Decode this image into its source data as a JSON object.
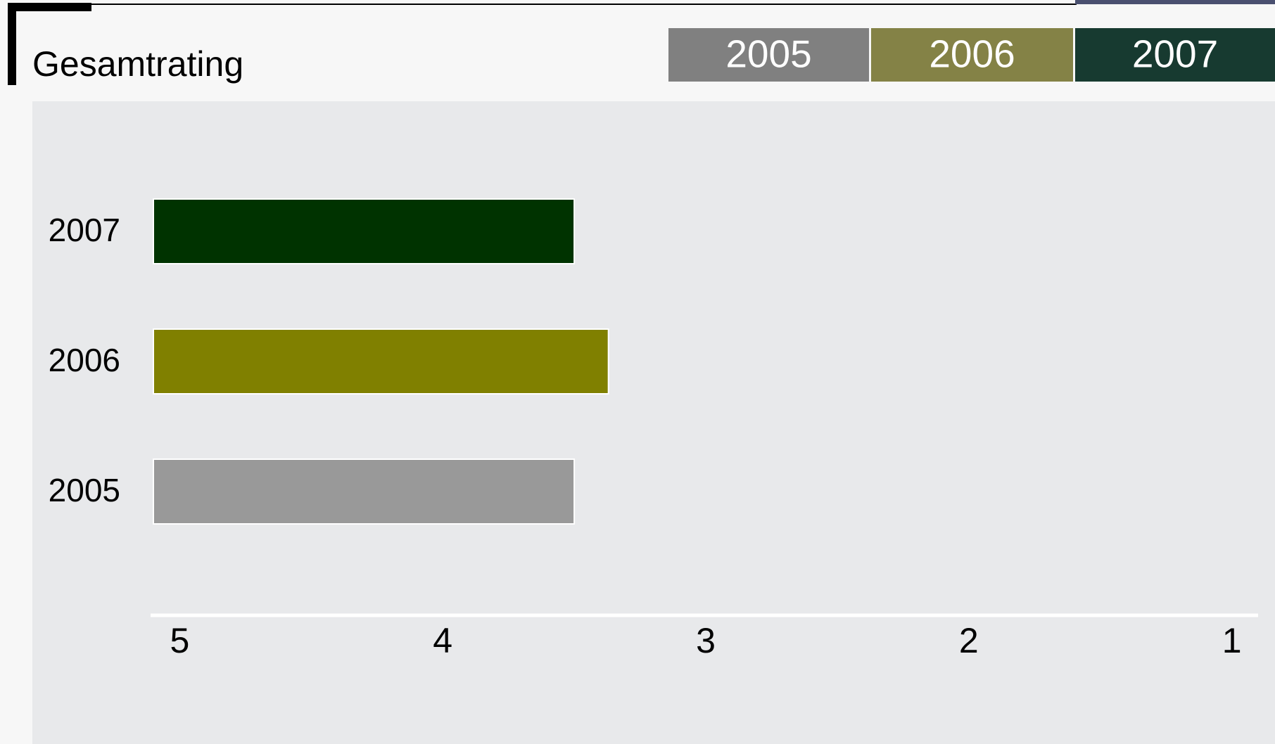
{
  "chart_data": {
    "type": "bar",
    "orientation": "horizontal",
    "title": "Gesamtrating",
    "categories": [
      "2005",
      "2006",
      "2007"
    ],
    "values": [
      3.5,
      3.37,
      3.5
    ],
    "colors": [
      "#999999",
      "#808000",
      "#003300"
    ],
    "legend_colors": [
      "#808080",
      "#848246",
      "#173a30"
    ],
    "xlim": [
      5.1,
      0.9
    ],
    "xticks": [
      5,
      4,
      3,
      2,
      1
    ]
  }
}
